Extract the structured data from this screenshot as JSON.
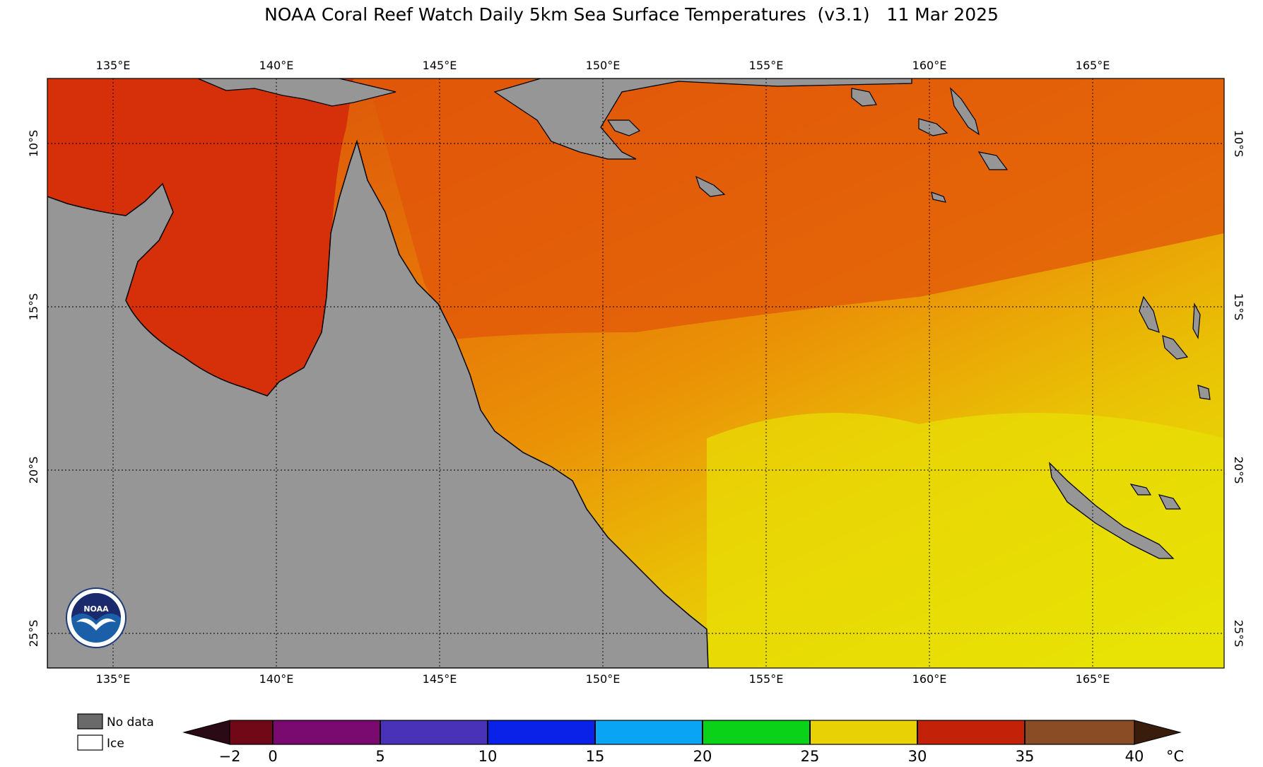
{
  "title": "NOAA Coral Reef Watch Daily 5km Sea Surface Temperatures  (v3.1)   11 Mar 2025",
  "longitude_labels": [
    "135°E",
    "140°E",
    "145°E",
    "150°E",
    "155°E",
    "160°E",
    "165°E"
  ],
  "latitude_labels": [
    "10°S",
    "15°S",
    "20°S",
    "25°S"
  ],
  "legend": {
    "no_data": "No data",
    "ice": "Ice"
  },
  "colorbar": {
    "unit": "°C",
    "ticks": [
      "−2",
      "0",
      "5",
      "10",
      "15",
      "20",
      "25",
      "30",
      "35",
      "40"
    ],
    "range": [
      -2,
      40
    ]
  },
  "logo": {
    "text": "NOAA"
  },
  "colors": {
    "land": "#969696",
    "sst_warmest": "#d42a08",
    "sst_warm": "#e25a06",
    "sst_mid": "#e8760a",
    "sst_cool": "#ecae04",
    "sst_coolest": "#e8e806"
  }
}
